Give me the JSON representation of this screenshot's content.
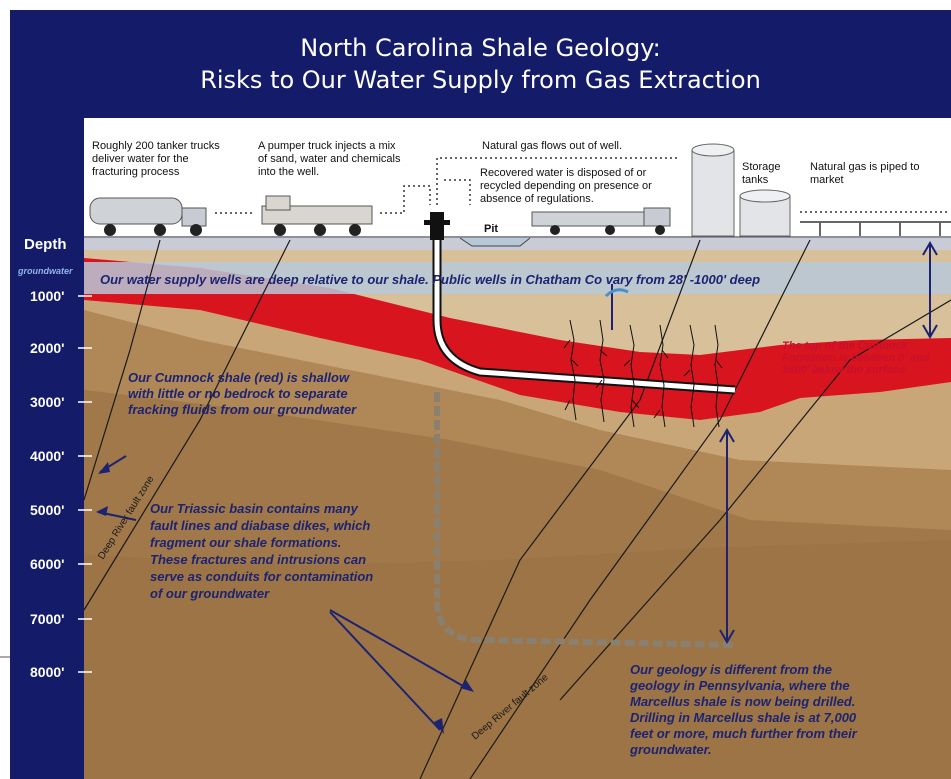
{
  "title": {
    "line1": "North Carolina Shale Geology:",
    "line2": "Risks to Our Water Supply from Gas Extraction"
  },
  "depth_axis": {
    "header": "Depth",
    "groundwater_label": "groundwater",
    "ticks": [
      "1000'",
      "2000'",
      "3000'",
      "4000'",
      "5000'",
      "6000'",
      "7000'",
      "8000'"
    ]
  },
  "annotations": {
    "tanker": "Roughly 200 tanker trucks deliver water for the fracturing process",
    "pumper": "A pumper truck injects a mix of sand, water and chemicals into the well.",
    "gas_flow": "Natural gas flows out of well.",
    "recovered": "Recovered water is disposed of or recycled depending on presence or absence of regulations.",
    "storage": "Storage tanks",
    "piped": "Natural gas is piped to market",
    "pit": "Pit"
  },
  "notes": {
    "water_wells": "Our  water supply wells are deep relative to our shale. Public wells in Chatham Co vary from 28' -1000' deep",
    "cumnock_line1": "Our Cumnock shale (red) is shallow",
    "cumnock_line2": "with little or no bedrock to separate",
    "cumnock_line3": "fracking fluids  from  our groundwater",
    "cumnock_top_line1": "The  top  of  the  Cumnock",
    "cumnock_top_line2": "Formation is between 0' and",
    "cumnock_top_line3": "1800'  below the surface",
    "triassic_line1": "Our Triassic basin contains many",
    "triassic_line2": "fault lines and diabase dikes, which",
    "triassic_line3": "fragment   our   shale  formations.",
    "triassic_line4": "These fractures and intrusions can",
    "triassic_line5": "serve as conduits for contamination",
    "triassic_line6": "of our groundwater",
    "geology_line1": "Our  geology  is  different  from  the",
    "geology_line2": "geology  in  Pennsylvania,  where  the",
    "geology_line3": "Marcellus shale is now being drilled.",
    "geology_line4": "Drilling in Marcellus shale is at 7,000",
    "geology_line5": "feet or more, much further from their",
    "geology_line6": "groundwater."
  },
  "fault_labels": {
    "left": "Deep River fault zone",
    "center": "Deep River fault zone"
  },
  "colors": {
    "background_navy": "#141c6a",
    "sky": "#ffffff",
    "surface_strip": "#c9ccd6",
    "groundwater_band": "#b9c8d8",
    "shale_red": "#d8141e",
    "tan_light": "#d8c09a",
    "tan_mid": "#c8a678",
    "brown_deep": "#b08757",
    "brown_deeper": "#a07849",
    "note_text": "#1c2472",
    "red_text": "#c8102e"
  }
}
